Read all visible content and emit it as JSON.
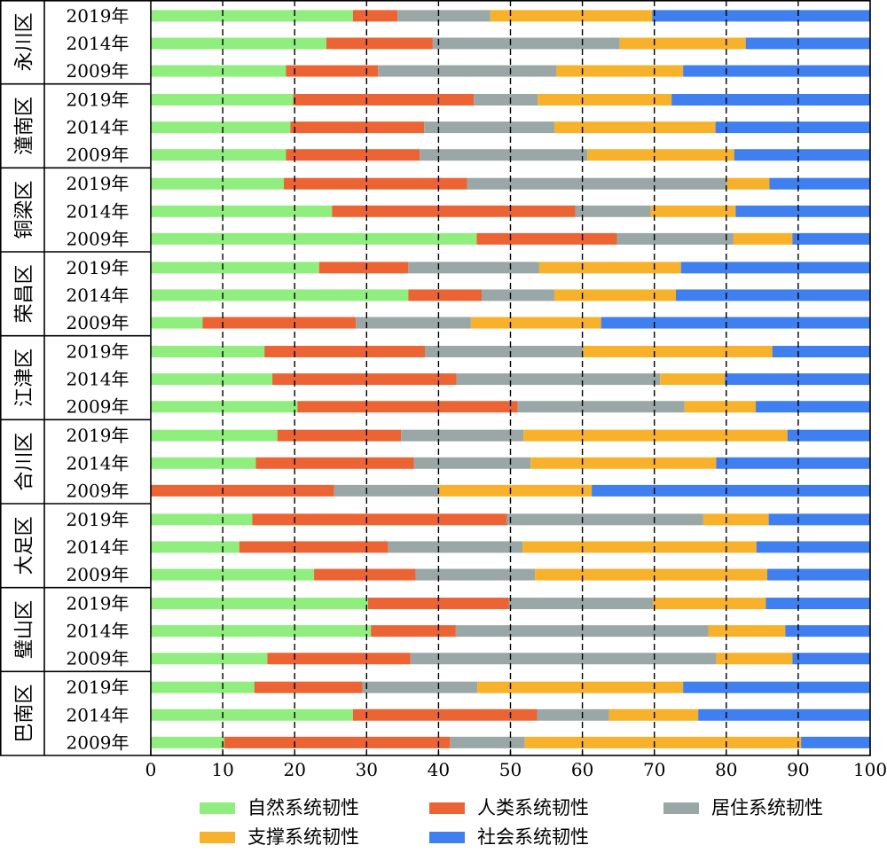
{
  "chart_data": {
    "type": "bar",
    "orientation": "horizontal",
    "stacked": true,
    "title": "",
    "xlabel": "",
    "ylabel": "",
    "xlim": [
      0,
      100
    ],
    "xticks": [
      "0",
      "10",
      "20",
      "30",
      "40",
      "50",
      "60",
      "70",
      "80",
      "90",
      "100"
    ],
    "grid": "vertical dashed",
    "legend_position": "bottom",
    "series_colors": [
      "#90ee7e",
      "#ec6434",
      "#9aa7a7",
      "#f8b12a",
      "#3f7fef"
    ],
    "series": [
      {
        "name": "自然系统韧性"
      },
      {
        "name": "人类系统韧性"
      },
      {
        "name": "居住系统韧性"
      },
      {
        "name": "支撑系统韧性"
      },
      {
        "name": "社会系统韧性"
      }
    ],
    "groups": [
      {
        "district": "永川区",
        "rows": [
          {
            "year": "2019年",
            "values": [
              28.1,
              6.2,
              12.9,
              22.5,
              30.3
            ]
          },
          {
            "year": "2014年",
            "values": [
              24.4,
              14.8,
              26.0,
              17.5,
              17.3
            ]
          },
          {
            "year": "2009年",
            "values": [
              18.8,
              12.8,
              24.8,
              17.6,
              26.0
            ]
          }
        ]
      },
      {
        "district": "潼南区",
        "rows": [
          {
            "year": "2019年",
            "values": [
              19.8,
              25.1,
              8.9,
              18.6,
              27.6
            ]
          },
          {
            "year": "2014年",
            "values": [
              19.4,
              18.6,
              18.1,
              22.4,
              21.5
            ]
          },
          {
            "year": "2009年",
            "values": [
              18.8,
              18.6,
              23.3,
              20.4,
              18.9
            ]
          }
        ]
      },
      {
        "district": "铜梁区",
        "rows": [
          {
            "year": "2019年",
            "values": [
              18.5,
              25.5,
              36.1,
              5.9,
              14.0
            ]
          },
          {
            "year": "2014年",
            "values": [
              25.2,
              33.8,
              10.5,
              11.8,
              18.7
            ]
          },
          {
            "year": "2009年",
            "values": [
              45.3,
              19.5,
              16.2,
              8.2,
              10.8
            ]
          }
        ]
      },
      {
        "district": "荣昌区",
        "rows": [
          {
            "year": "2019年",
            "values": [
              23.4,
              12.4,
              18.2,
              19.7,
              26.3
            ]
          },
          {
            "year": "2014年",
            "values": [
              35.8,
              10.2,
              10.1,
              16.9,
              27.0
            ]
          },
          {
            "year": "2009年",
            "values": [
              7.2,
              21.3,
              16.0,
              18.1,
              37.4
            ]
          }
        ]
      },
      {
        "district": "江津区",
        "rows": [
          {
            "year": "2019年",
            "values": [
              15.8,
              22.3,
              22.0,
              26.3,
              13.6
            ]
          },
          {
            "year": "2014年",
            "values": [
              16.9,
              25.6,
              28.3,
              9.0,
              20.2
            ]
          },
          {
            "year": "2009年",
            "values": [
              20.4,
              30.6,
              23.2,
              9.9,
              15.9
            ]
          }
        ]
      },
      {
        "district": "合川区",
        "rows": [
          {
            "year": "2019年",
            "values": [
              17.6,
              17.2,
              17.0,
              36.7,
              11.5
            ]
          },
          {
            "year": "2014年",
            "values": [
              14.6,
              22.0,
              16.2,
              25.8,
              21.4
            ]
          },
          {
            "year": "2009年",
            "values": [
              0.0,
              25.5,
              14.5,
              21.3,
              38.7
            ]
          }
        ]
      },
      {
        "district": "大足区",
        "rows": [
          {
            "year": "2019年",
            "values": [
              14.1,
              35.4,
              27.3,
              9.1,
              14.1
            ]
          },
          {
            "year": "2014年",
            "values": [
              12.3,
              20.7,
              18.7,
              32.5,
              15.8
            ]
          },
          {
            "year": "2009年",
            "values": [
              22.7,
              14.1,
              16.6,
              32.3,
              14.3
            ]
          }
        ]
      },
      {
        "district": "璧山区",
        "rows": [
          {
            "year": "2019年",
            "values": [
              30.2,
              19.6,
              20.0,
              15.7,
              14.5
            ]
          },
          {
            "year": "2014年",
            "values": [
              30.6,
              11.8,
              35.1,
              10.7,
              11.8
            ]
          },
          {
            "year": "2009年",
            "values": [
              16.2,
              19.9,
              42.5,
              10.6,
              10.8
            ]
          }
        ]
      },
      {
        "district": "巴南区",
        "rows": [
          {
            "year": "2019年",
            "values": [
              14.4,
              15.0,
              16.0,
              28.6,
              26.0
            ]
          },
          {
            "year": "2014年",
            "values": [
              28.1,
              25.6,
              10.0,
              12.4,
              23.9
            ]
          },
          {
            "year": "2009年",
            "values": [
              10.2,
              31.4,
              10.4,
              38.4,
              9.6
            ]
          }
        ]
      }
    ]
  }
}
